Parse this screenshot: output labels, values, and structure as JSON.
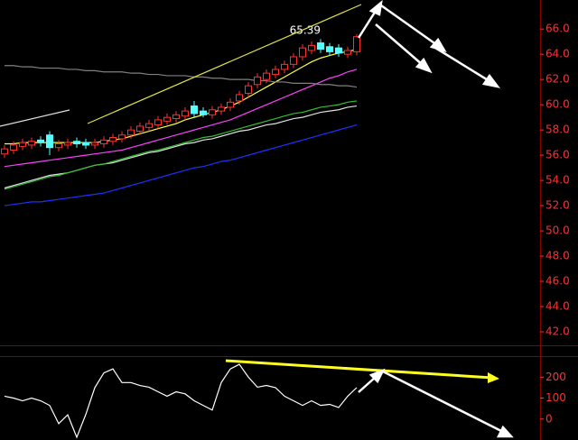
{
  "chart_data": [
    {
      "type": "candlestick",
      "categories": [
        null,
        null,
        null,
        null,
        null,
        null,
        null,
        null,
        null,
        null,
        null,
        null,
        null,
        null,
        null,
        null,
        null,
        null,
        null,
        null,
        null,
        null,
        null,
        null,
        null,
        null,
        null,
        null,
        null,
        null,
        null,
        null,
        null,
        null,
        null,
        null,
        null,
        null,
        null,
        null
      ],
      "open": [
        56.1,
        56.4,
        56.7,
        56.8,
        57.2,
        57.6,
        56.6,
        56.8,
        57.1,
        57.0,
        56.8,
        56.9,
        57.1,
        57.3,
        57.6,
        57.9,
        58.2,
        58.4,
        58.7,
        58.9,
        59.1,
        59.9,
        59.5,
        59.2,
        59.5,
        59.8,
        60.3,
        60.9,
        61.6,
        62.0,
        62.4,
        62.8,
        63.2,
        63.8,
        64.3,
        64.9,
        64.6,
        64.5,
        64.0,
        64.2
      ],
      "high": [
        56.8,
        57.1,
        57.3,
        57.4,
        57.5,
        57.9,
        57.2,
        57.3,
        57.4,
        57.3,
        57.3,
        57.5,
        57.7,
        57.9,
        58.3,
        58.6,
        58.8,
        59.1,
        59.3,
        59.5,
        59.8,
        60.3,
        59.8,
        59.9,
        60.1,
        60.5,
        61.1,
        61.8,
        62.5,
        62.8,
        63.1,
        63.5,
        64.1,
        64.8,
        65.0,
        65.2,
        64.9,
        64.8,
        64.6,
        65.6
      ],
      "low": [
        55.8,
        56.1,
        56.4,
        56.5,
        56.7,
        56.0,
        56.3,
        56.5,
        56.6,
        56.5,
        56.5,
        56.6,
        56.8,
        57.0,
        57.3,
        57.6,
        57.9,
        58.1,
        58.4,
        58.6,
        58.8,
        59.0,
        59.0,
        58.9,
        59.2,
        59.5,
        60.0,
        60.6,
        61.3,
        61.7,
        62.1,
        62.5,
        62.9,
        63.5,
        64.0,
        64.1,
        63.9,
        63.8,
        63.7,
        63.9
      ],
      "close": [
        56.5,
        56.8,
        57.0,
        57.1,
        57.0,
        56.6,
        56.9,
        57.0,
        56.9,
        56.8,
        57.0,
        57.2,
        57.4,
        57.6,
        58.0,
        58.3,
        58.5,
        58.8,
        59.0,
        59.2,
        59.5,
        59.3,
        59.2,
        59.6,
        59.8,
        60.2,
        60.8,
        61.5,
        62.2,
        62.5,
        62.8,
        63.2,
        63.8,
        64.5,
        64.7,
        64.4,
        64.2,
        64.1,
        64.3,
        65.39
      ],
      "up_color": "#ff3030",
      "down_color": "#54ffff",
      "series": [
        {
          "color": "#ffff40",
          "values": [
            56.9,
            56.9,
            57.0,
            57.0,
            57.0,
            57.0,
            57.0,
            57.0,
            57.0,
            57.0,
            57.0,
            57.1,
            57.2,
            57.3,
            57.5,
            57.7,
            57.9,
            58.1,
            58.3,
            58.5,
            58.8,
            59.0,
            59.2,
            59.4,
            59.6,
            59.9,
            60.2,
            60.6,
            61.0,
            61.4,
            61.8,
            62.2,
            62.6,
            63.0,
            63.4,
            63.7,
            63.9,
            64.1,
            64.2,
            64.4
          ]
        },
        {
          "color": "#ff40ff",
          "values": [
            55.1,
            55.2,
            55.3,
            55.4,
            55.5,
            55.6,
            55.7,
            55.8,
            55.9,
            56.0,
            56.1,
            56.2,
            56.3,
            56.4,
            56.6,
            56.8,
            57.0,
            57.2,
            57.4,
            57.6,
            57.8,
            58.0,
            58.2,
            58.4,
            58.6,
            58.8,
            59.1,
            59.4,
            59.7,
            60.0,
            60.3,
            60.6,
            60.9,
            61.2,
            61.5,
            61.8,
            62.1,
            62.3,
            62.6,
            62.8
          ]
        },
        {
          "color": "#e0e0e0",
          "values": [
            53.4,
            53.6,
            53.8,
            54.0,
            54.2,
            54.4,
            54.5,
            54.6,
            54.8,
            55.0,
            55.2,
            55.3,
            55.4,
            55.6,
            55.8,
            56.0,
            56.2,
            56.3,
            56.5,
            56.7,
            56.9,
            57.0,
            57.2,
            57.3,
            57.5,
            57.7,
            57.9,
            58.0,
            58.2,
            58.4,
            58.5,
            58.7,
            58.9,
            59.0,
            59.2,
            59.4,
            59.5,
            59.6,
            59.8,
            59.9
          ]
        },
        {
          "color": "#30c030",
          "values": [
            53.3,
            53.5,
            53.7,
            53.9,
            54.1,
            54.3,
            54.4,
            54.6,
            54.8,
            55.0,
            55.2,
            55.3,
            55.5,
            55.7,
            55.9,
            56.1,
            56.3,
            56.4,
            56.6,
            56.8,
            57.0,
            57.2,
            57.4,
            57.5,
            57.7,
            57.9,
            58.1,
            58.3,
            58.5,
            58.7,
            58.9,
            59.1,
            59.3,
            59.4,
            59.6,
            59.8,
            59.9,
            60.0,
            60.2,
            60.3
          ]
        },
        {
          "color": "#2030ff",
          "values": [
            52.0,
            52.1,
            52.2,
            52.3,
            52.3,
            52.4,
            52.5,
            52.6,
            52.7,
            52.8,
            52.9,
            53.0,
            53.2,
            53.4,
            53.6,
            53.8,
            54.0,
            54.2,
            54.4,
            54.6,
            54.8,
            55.0,
            55.1,
            55.3,
            55.5,
            55.6,
            55.8,
            56.0,
            56.2,
            56.4,
            56.6,
            56.8,
            57.0,
            57.2,
            57.4,
            57.6,
            57.8,
            58.0,
            58.2,
            58.4
          ]
        },
        {
          "color": "#808080",
          "values": [
            63.1,
            63.1,
            63.0,
            63.0,
            62.9,
            62.9,
            62.9,
            62.8,
            62.8,
            62.7,
            62.7,
            62.6,
            62.6,
            62.6,
            62.5,
            62.5,
            62.4,
            62.4,
            62.3,
            62.3,
            62.3,
            62.2,
            62.2,
            62.1,
            62.1,
            62.0,
            62.0,
            62.0,
            61.9,
            61.9,
            61.8,
            61.8,
            61.7,
            61.7,
            61.7,
            61.6,
            61.6,
            61.5,
            61.5,
            61.4
          ]
        }
      ],
      "price_label": "65.39",
      "ylim": [
        41.0,
        68.3
      ],
      "yticks": [
        {
          "value": 42,
          "label": "42.0"
        },
        {
          "value": 44,
          "label": "44.0"
        },
        {
          "value": 46,
          "label": "46.0"
        },
        {
          "value": 48,
          "label": "48.0"
        },
        {
          "value": 50,
          "label": "50.0"
        },
        {
          "value": 52,
          "label": "52.0"
        },
        {
          "value": 54,
          "label": "54.0"
        },
        {
          "value": 56,
          "label": "56.0"
        },
        {
          "value": 58,
          "label": "58.0"
        },
        {
          "value": 60,
          "label": "60.0"
        },
        {
          "value": 62,
          "label": "62.0"
        },
        {
          "value": 64,
          "label": "64.0"
        },
        {
          "value": 66,
          "label": "66.0"
        }
      ],
      "tick_color": "#ff3030"
    },
    {
      "type": "line",
      "categories": [
        null,
        null,
        null,
        null,
        null,
        null,
        null,
        null,
        null,
        null,
        null,
        null,
        null,
        null,
        null,
        null,
        null,
        null,
        null,
        null,
        null,
        null,
        null,
        null,
        null,
        null,
        null,
        null,
        null,
        null,
        null,
        null,
        null,
        null,
        null,
        null,
        null,
        null,
        null,
        null
      ],
      "values": [
        109,
        100,
        87,
        100,
        87,
        65,
        -22,
        20,
        -87,
        22,
        150,
        220,
        239,
        174,
        174,
        160,
        152,
        130,
        109,
        130,
        120,
        87,
        65,
        43,
        174,
        239,
        261,
        200,
        152,
        160,
        150,
        109,
        87,
        65,
        87,
        65,
        70,
        55,
        109,
        150
      ],
      "color": "#ffffff",
      "ylim": [
        -100,
        300
      ],
      "yticks": [
        0,
        100,
        200
      ],
      "tick_color": "#ff3030"
    }
  ]
}
